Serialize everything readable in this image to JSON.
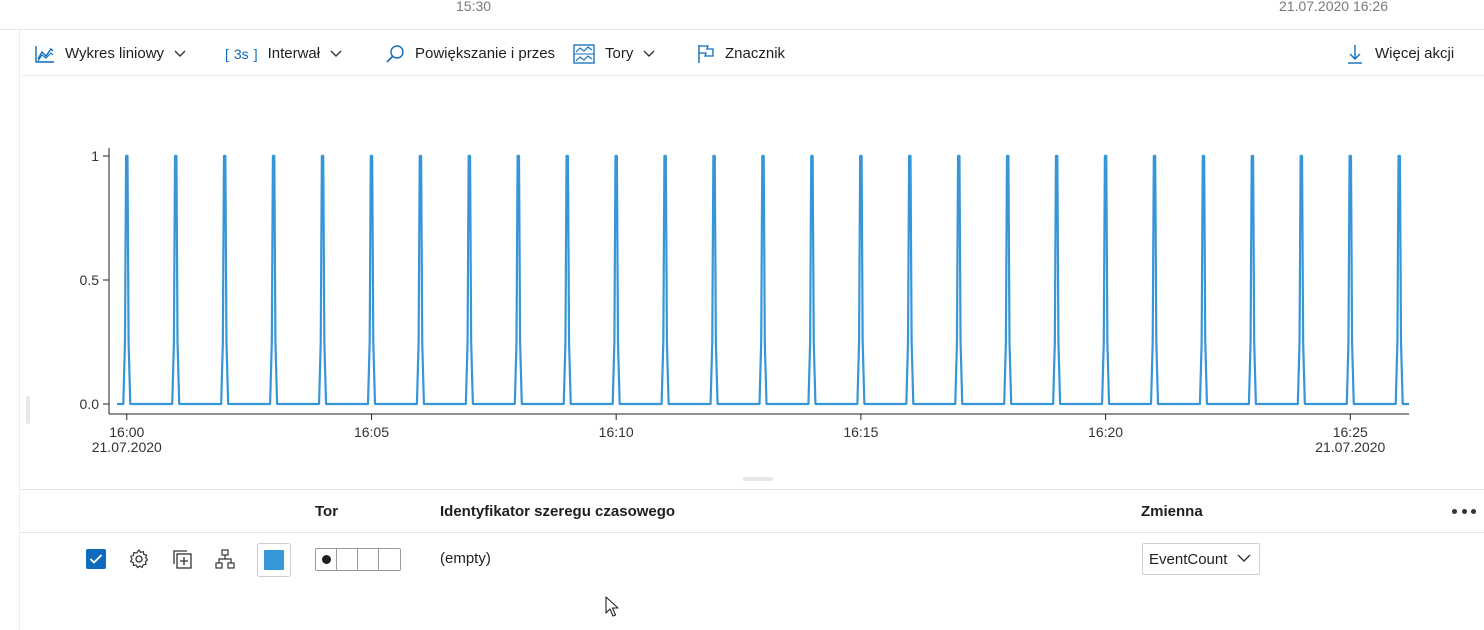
{
  "top_strip": {
    "left_time": "15:30",
    "right_datetime": "21.07.2020 16:26"
  },
  "toolbar": {
    "chart_type_label": "Wykres liniowy",
    "interval_value": "3s",
    "interval_open": "[",
    "interval_close": "]",
    "interval_label": "Interwał",
    "zoom_label": "Powiększanie i przesu",
    "lanes_label": "Tory",
    "marker_label": "Znacznik",
    "more_actions_label": "Więcej akcji"
  },
  "chart_data": {
    "type": "line",
    "y_ticks": [
      "1",
      "0.5",
      "0.0"
    ],
    "x_ticks": [
      {
        "label": "16:00",
        "sub": "21.07.2020"
      },
      {
        "label": "16:05",
        "sub": ""
      },
      {
        "label": "16:10",
        "sub": ""
      },
      {
        "label": "16:15",
        "sub": ""
      },
      {
        "label": "16:20",
        "sub": ""
      },
      {
        "label": "16:25",
        "sub": "21.07.2020"
      }
    ],
    "ylim": [
      0,
      1
    ],
    "x_unit": "minutes after 16:00",
    "xlim": [
      -0.2,
      26.2
    ],
    "baseline": 0,
    "spike_value": 1,
    "spike_times": [
      0,
      1,
      2,
      3,
      4,
      5,
      6,
      7,
      8,
      9,
      10,
      11,
      12,
      13,
      14,
      15,
      16,
      17,
      18,
      19,
      20,
      21,
      22,
      23,
      24,
      25,
      26
    ],
    "series_color": "#3796d8"
  },
  "grid": {
    "headers": {
      "lane": "Tor",
      "ts_id": "Identyfikator szeregu czasowego",
      "variable": "Zmienna"
    },
    "rows": [
      {
        "checked": true,
        "swatch_color": "#3796d8",
        "ts_id": "(empty)",
        "variable": "EventCount",
        "active_lane": 1
      }
    ]
  }
}
